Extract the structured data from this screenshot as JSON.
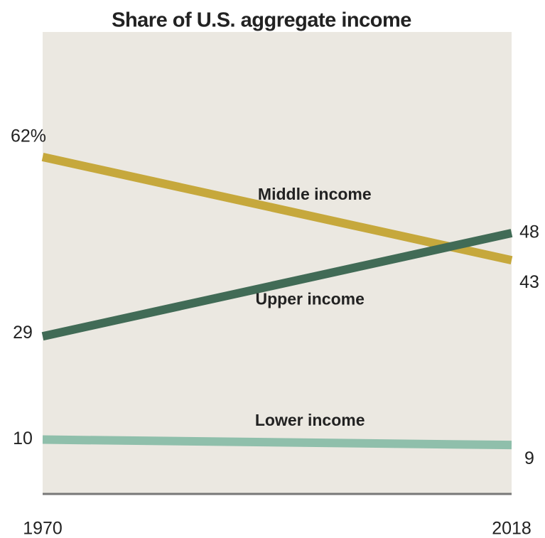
{
  "chart_data": {
    "type": "line",
    "title": "Share of U.S. aggregate income",
    "x": [
      1970,
      2018
    ],
    "xlim": [
      1970,
      2018
    ],
    "ylim": [
      0,
      85
    ],
    "series": [
      {
        "name": "Middle income",
        "color": "#c6a83c",
        "values": [
          62,
          43
        ],
        "value_labels": [
          "62%",
          "43"
        ]
      },
      {
        "name": "Upper income",
        "color": "#416b56",
        "values": [
          29,
          48
        ]
      },
      {
        "name": "Lower income",
        "color": "#8fbfab",
        "values": [
          10,
          9
        ]
      }
    ]
  }
}
